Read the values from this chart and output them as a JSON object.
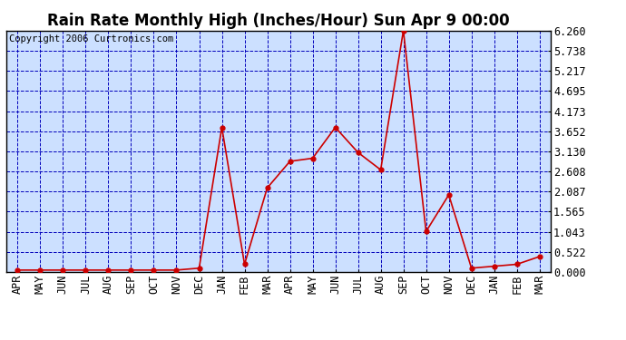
{
  "title": "Rain Rate Monthly High (Inches/Hour) Sun Apr 9 00:00",
  "copyright": "Copyright 2006 Curtronics.com",
  "categories": [
    "APR",
    "MAY",
    "JUN",
    "JUL",
    "AUG",
    "SEP",
    "OCT",
    "NOV",
    "DEC",
    "JAN",
    "FEB",
    "MAR",
    "APR",
    "MAY",
    "JUN",
    "JUL",
    "AUG",
    "SEP",
    "OCT",
    "NOV",
    "DEC",
    "JAN",
    "FEB",
    "MAR"
  ],
  "values": [
    0.05,
    0.05,
    0.05,
    0.05,
    0.05,
    0.05,
    0.05,
    0.05,
    0.1,
    3.75,
    0.2,
    2.18,
    2.87,
    2.95,
    3.75,
    3.1,
    2.65,
    6.26,
    1.05,
    2.0,
    0.1,
    0.15,
    0.2,
    0.4
  ],
  "yticks": [
    0.0,
    0.522,
    1.043,
    1.565,
    2.087,
    2.608,
    3.13,
    3.652,
    4.173,
    4.695,
    5.217,
    5.738,
    6.26
  ],
  "ymax": 6.26,
  "line_color": "#cc0000",
  "marker_color": "#cc0000",
  "bg_color": "#ffffff",
  "plot_bg": "#cce0ff",
  "grid_color": "#0000bb",
  "title_color": "#000000",
  "border_color": "#000000",
  "text_color": "#000000",
  "copyright_color": "#000000",
  "title_fontsize": 12,
  "axis_fontsize": 8.5,
  "copyright_fontsize": 7.5
}
